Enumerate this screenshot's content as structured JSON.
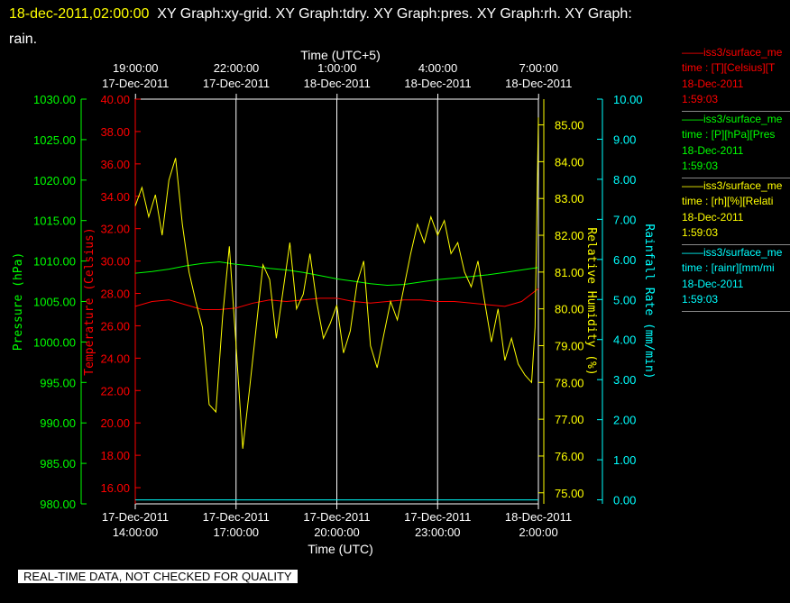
{
  "header": {
    "timestamp": "18-dec-2011,02:00:00",
    "graphs": "XY Graph:xy-grid.  XY Graph:tdry.  XY Graph:pres.  XY Graph:rh.  XY Graph:",
    "graphs_cont": "rain."
  },
  "quality_note": "REAL-TIME DATA, NOT CHECKED FOR QUALITY",
  "colors": {
    "temp": "#ff0000",
    "pres": "#00ff00",
    "rh": "#ffff00",
    "rain": "#00ffff",
    "grid": "#ffffff"
  },
  "legend": [
    {
      "line": "——iss3/surface_me",
      "field": "time : [T][Celsius][T",
      "date": "18-Dec-2011",
      "time": "1:59:03",
      "color": "#ff0000"
    },
    {
      "line": "——iss3/surface_me",
      "field": "time : [P][hPa][Pres",
      "date": "18-Dec-2011",
      "time": "1:59:03",
      "color": "#00ff00"
    },
    {
      "line": "——iss3/surface_me",
      "field": "time : [rh][%][Relati",
      "date": "18-Dec-2011",
      "time": "1:59:03",
      "color": "#ffff00"
    },
    {
      "line": "——iss3/surface_me",
      "field": "time : [rainr][mm/mi",
      "date": "18-Dec-2011",
      "time": "1:59:03",
      "color": "#00ffff"
    }
  ],
  "chart_data": {
    "type": "line",
    "x_bottom": {
      "label": "Time (UTC)",
      "ticks": [
        {
          "date": "17-Dec-2011",
          "time": "14:00:00"
        },
        {
          "date": "17-Dec-2011",
          "time": "17:00:00"
        },
        {
          "date": "17-Dec-2011",
          "time": "20:00:00"
        },
        {
          "date": "17-Dec-2011",
          "time": "23:00:00"
        },
        {
          "date": "18-Dec-2011",
          "time": "2:00:00"
        }
      ]
    },
    "x_top": {
      "label": "Time (UTC+5)",
      "ticks": [
        {
          "time": "19:00:00",
          "date": "17-Dec-2011"
        },
        {
          "time": "22:00:00",
          "date": "17-Dec-2011"
        },
        {
          "time": "1:00:00",
          "date": "18-Dec-2011"
        },
        {
          "time": "4:00:00",
          "date": "18-Dec-2011"
        },
        {
          "time": "7:00:00",
          "date": "18-Dec-2011"
        }
      ]
    },
    "xlim_hours_utc": [
      14,
      26
    ],
    "grid": true,
    "axes": {
      "pressure": {
        "label": "Pressure (hPa)",
        "ylim": [
          980,
          1030
        ],
        "ticks": [
          "980.00",
          "985.00",
          "990.00",
          "995.00",
          "1000.00",
          "1005.00",
          "1010.00",
          "1015.00",
          "1020.00",
          "1025.00",
          "1030.00"
        ]
      },
      "temperature": {
        "label": "Temperature (Celsius)",
        "ylim": [
          15,
          40
        ],
        "ticks": [
          "16.00",
          "18.00",
          "20.00",
          "22.00",
          "24.00",
          "26.00",
          "28.00",
          "30.00",
          "32.00",
          "34.00",
          "36.00",
          "38.00",
          "40.00"
        ]
      },
      "rh": {
        "label": "Relative Humidity (%)",
        "ylim": [
          74.7,
          85.7
        ],
        "ticks": [
          "75.00",
          "76.00",
          "77.00",
          "78.00",
          "79.00",
          "80.00",
          "81.00",
          "82.00",
          "83.00",
          "84.00",
          "85.00"
        ]
      },
      "rain": {
        "label": "Rainfall Rate (mm/min)",
        "ylim": [
          -0.1,
          10
        ],
        "ticks": [
          "0.00",
          "1.00",
          "2.00",
          "3.00",
          "4.00",
          "5.00",
          "6.00",
          "7.00",
          "8.00",
          "9.00",
          "10.00"
        ]
      }
    },
    "series": [
      {
        "key": "temp",
        "axis": "temperature",
        "x": [
          14,
          14.5,
          15,
          15.5,
          16,
          16.5,
          17,
          17.5,
          18,
          18.5,
          19,
          19.5,
          20,
          20.5,
          21,
          21.5,
          22,
          22.5,
          23,
          23.5,
          24,
          24.5,
          25,
          25.5,
          26
        ],
        "y": [
          27.2,
          27.5,
          27.6,
          27.3,
          27.0,
          27.0,
          27.1,
          27.4,
          27.6,
          27.5,
          27.6,
          27.7,
          27.7,
          27.5,
          27.4,
          27.5,
          27.6,
          27.6,
          27.5,
          27.5,
          27.4,
          27.3,
          27.2,
          27.5,
          28.3
        ]
      },
      {
        "key": "pres",
        "axis": "pressure",
        "x": [
          14,
          14.5,
          15,
          15.5,
          16,
          16.5,
          17,
          17.5,
          18,
          18.5,
          19,
          19.5,
          20,
          20.5,
          21,
          21.5,
          22,
          22.5,
          23,
          23.5,
          24,
          24.5,
          25,
          25.5,
          26
        ],
        "y": [
          1008.5,
          1008.7,
          1009.0,
          1009.4,
          1009.7,
          1009.9,
          1009.6,
          1009.4,
          1009.1,
          1008.9,
          1008.6,
          1008.2,
          1007.8,
          1007.5,
          1007.2,
          1007.0,
          1007.1,
          1007.4,
          1007.7,
          1007.9,
          1008.1,
          1008.3,
          1008.6,
          1008.9,
          1009.2
        ]
      },
      {
        "key": "rh",
        "axis": "rh",
        "x": [
          14,
          14.2,
          14.4,
          14.6,
          14.8,
          15,
          15.2,
          15.4,
          15.6,
          15.8,
          16,
          16.2,
          16.4,
          16.6,
          16.8,
          17,
          17.2,
          17.4,
          17.6,
          17.8,
          18,
          18.2,
          18.4,
          18.6,
          18.8,
          19,
          19.2,
          19.4,
          19.6,
          19.8,
          20,
          20.2,
          20.4,
          20.6,
          20.8,
          21,
          21.2,
          21.4,
          21.6,
          21.8,
          22,
          22.2,
          22.4,
          22.6,
          22.8,
          23,
          23.2,
          23.4,
          23.6,
          23.8,
          24,
          24.2,
          24.4,
          24.6,
          24.8,
          25,
          25.2,
          25.4,
          25.6,
          25.8,
          25.9,
          26
        ],
        "y": [
          82.8,
          83.3,
          82.5,
          83.1,
          82.0,
          83.5,
          84.1,
          82.3,
          81.0,
          80.2,
          79.5,
          77.4,
          77.2,
          79.8,
          81.7,
          79.0,
          76.2,
          77.8,
          79.5,
          81.2,
          80.8,
          79.2,
          80.5,
          81.8,
          80.0,
          80.4,
          81.5,
          80.2,
          79.2,
          79.6,
          80.1,
          78.8,
          79.4,
          80.7,
          81.3,
          79.0,
          78.4,
          79.3,
          80.2,
          79.7,
          80.6,
          81.5,
          82.3,
          81.8,
          82.5,
          82.0,
          82.4,
          81.5,
          81.8,
          81.0,
          80.6,
          81.3,
          80.2,
          79.1,
          80.0,
          78.6,
          79.2,
          78.5,
          78.2,
          78.0,
          79.5,
          85.2
        ]
      },
      {
        "key": "rain",
        "axis": "rain",
        "x": [
          14,
          26
        ],
        "y": [
          0,
          0
        ]
      }
    ]
  }
}
